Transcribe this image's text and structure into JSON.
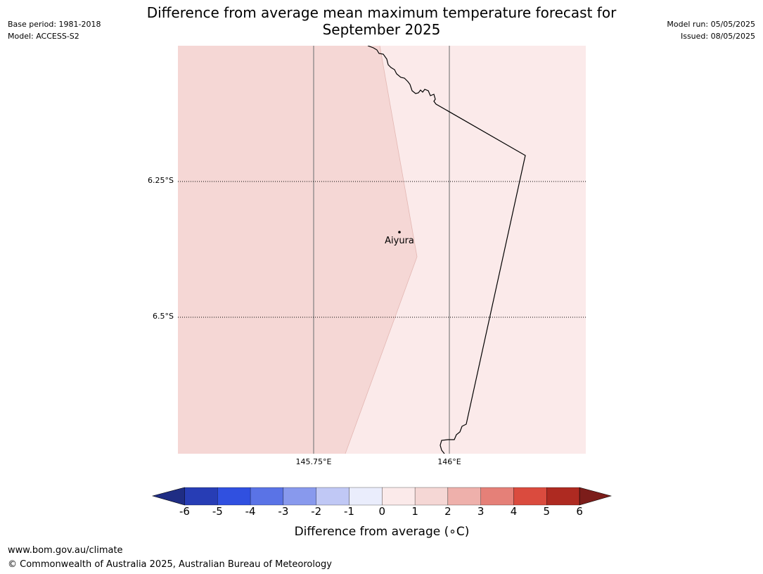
{
  "title_line1": "Difference from average mean maximum temperature forecast for",
  "title_line2": "September 2025",
  "meta_left": {
    "base_period": "Base period: 1981-2018",
    "model": "Model: ACCESS-S2"
  },
  "meta_right": {
    "model_run": "Model run: 05/05/2025",
    "issued": "Issued: 08/05/2025"
  },
  "map": {
    "latitude_labels": [
      "6.25°S",
      "6.5°S"
    ],
    "longitude_labels": [
      "145.75°E",
      "146°E"
    ],
    "place": {
      "name": "Aiyura",
      "icon": "location-dot-icon"
    },
    "fill_colors": {
      "anomaly_1_to_2": "#f5d7d5",
      "anomaly_0_to_1": "#fbeaea"
    }
  },
  "colorbar": {
    "ticks": [
      "-6",
      "-5",
      "-4",
      "-3",
      "-2",
      "-1",
      "0",
      "1",
      "2",
      "3",
      "4",
      "5",
      "6"
    ],
    "colors": [
      "#1f2d84",
      "#273db5",
      "#3050e0",
      "#5a73e6",
      "#8899ed",
      "#c0c8f5",
      "#eaedfc",
      "#fbeaea",
      "#f5d7d5",
      "#eeb0ab",
      "#e58078",
      "#da4b3e",
      "#ae2a21",
      "#7c1d1a"
    ],
    "label": "Difference from average (",
    "label_unit": "∘C)"
  },
  "footer": {
    "url": "www.bom.gov.au/climate",
    "copyright": "© Commonwealth of Australia 2025, Australian Bureau of Meteorology"
  }
}
